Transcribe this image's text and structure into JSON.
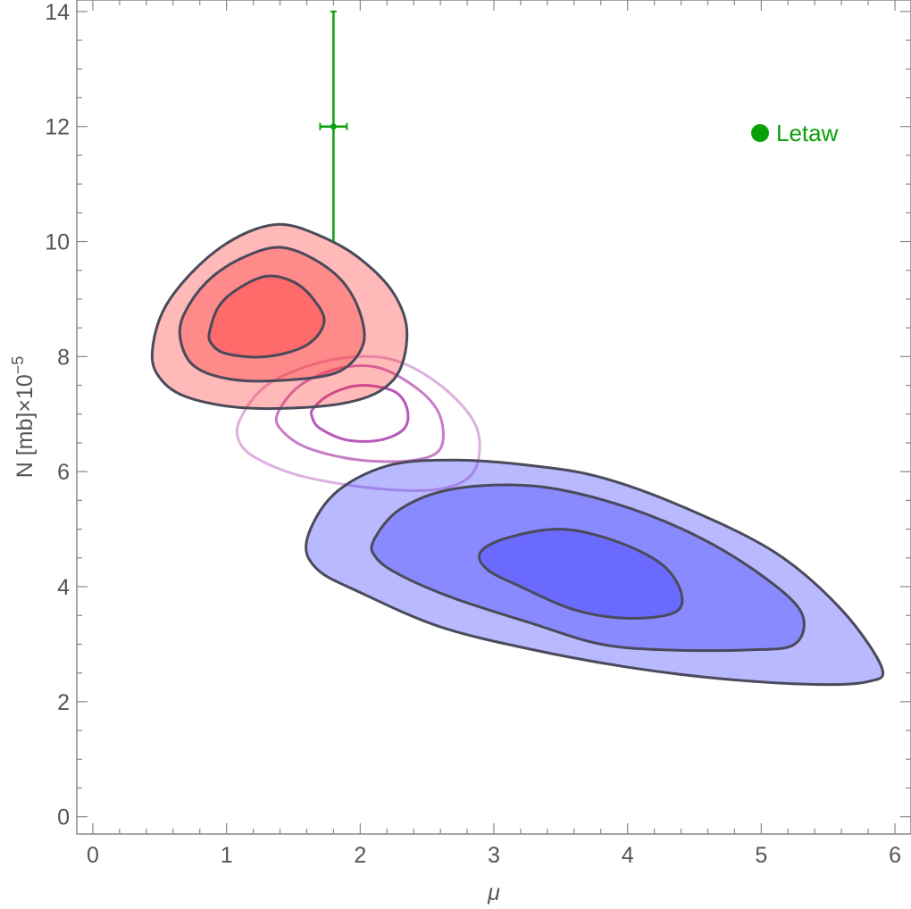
{
  "chart_data": {
    "type": "contour",
    "xlabel": "μ",
    "ylabel": "N [mb]×10",
    "ylabel_exponent": "−5",
    "xlim": [
      -0.12,
      6.12
    ],
    "ylim": [
      -0.3,
      14.2
    ],
    "x_ticks": [
      0,
      1,
      2,
      3,
      4,
      5,
      6
    ],
    "x_tick_labels": [
      "0",
      "1",
      "2",
      "3",
      "4",
      "5",
      "6"
    ],
    "y_ticks": [
      0,
      2,
      4,
      6,
      8,
      10,
      12,
      14
    ],
    "y_tick_labels": [
      "0",
      "2",
      "4",
      "6",
      "8",
      "10",
      "12",
      "14"
    ],
    "grid": false,
    "colors": {
      "red": "#ff2a2a",
      "blue": "#2a2aff",
      "purple": "#b44fb4",
      "green": "#0aa00a",
      "outline": "#4a4a5a"
    },
    "contour_sets": [
      {
        "color": "red",
        "filled": true,
        "levels": [
          {
            "points": [
              [
                0.45,
                8.2
              ],
              [
                0.55,
                8.9
              ],
              [
                0.8,
                9.6
              ],
              [
                1.1,
                10.1
              ],
              [
                1.4,
                10.3
              ],
              [
                1.7,
                10.1
              ],
              [
                2.0,
                9.7
              ],
              [
                2.25,
                9.1
              ],
              [
                2.35,
                8.4
              ],
              [
                2.25,
                7.6
              ],
              [
                1.9,
                7.2
              ],
              [
                1.2,
                7.1
              ],
              [
                0.7,
                7.3
              ],
              [
                0.48,
                7.7
              ]
            ]
          },
          {
            "points": [
              [
                0.65,
                8.4
              ],
              [
                0.72,
                8.9
              ],
              [
                0.9,
                9.4
              ],
              [
                1.15,
                9.75
              ],
              [
                1.4,
                9.9
              ],
              [
                1.65,
                9.7
              ],
              [
                1.87,
                9.3
              ],
              [
                2.0,
                8.75
              ],
              [
                2.02,
                8.2
              ],
              [
                1.85,
                7.75
              ],
              [
                1.5,
                7.6
              ],
              [
                1.05,
                7.6
              ],
              [
                0.75,
                7.85
              ]
            ]
          },
          {
            "points": [
              [
                0.88,
                8.5
              ],
              [
                0.95,
                8.9
              ],
              [
                1.1,
                9.2
              ],
              [
                1.3,
                9.4
              ],
              [
                1.5,
                9.3
              ],
              [
                1.65,
                9.0
              ],
              [
                1.73,
                8.6
              ],
              [
                1.6,
                8.2
              ],
              [
                1.3,
                8.0
              ],
              [
                1.0,
                8.05
              ],
              [
                0.88,
                8.25
              ]
            ]
          }
        ]
      },
      {
        "color": "blue",
        "filled": true,
        "levels": [
          {
            "points": [
              [
                1.6,
                4.8
              ],
              [
                1.8,
                5.6
              ],
              [
                2.2,
                6.1
              ],
              [
                2.7,
                6.2
              ],
              [
                3.3,
                6.1
              ],
              [
                3.8,
                5.9
              ],
              [
                4.4,
                5.4
              ],
              [
                5.1,
                4.6
              ],
              [
                5.6,
                3.6
              ],
              [
                5.9,
                2.6
              ],
              [
                5.8,
                2.35
              ],
              [
                5.4,
                2.3
              ],
              [
                4.7,
                2.4
              ],
              [
                4.0,
                2.6
              ],
              [
                3.3,
                2.9
              ],
              [
                2.6,
                3.3
              ],
              [
                2.0,
                3.9
              ],
              [
                1.68,
                4.3
              ]
            ]
          },
          {
            "points": [
              [
                2.1,
                4.8
              ],
              [
                2.3,
                5.35
              ],
              [
                2.7,
                5.7
              ],
              [
                3.3,
                5.75
              ],
              [
                3.9,
                5.45
              ],
              [
                4.5,
                4.9
              ],
              [
                5.0,
                4.2
              ],
              [
                5.3,
                3.55
              ],
              [
                5.25,
                3.0
              ],
              [
                4.9,
                2.9
              ],
              [
                4.3,
                2.9
              ],
              [
                3.8,
                3.0
              ],
              [
                3.3,
                3.35
              ],
              [
                2.7,
                3.8
              ],
              [
                2.3,
                4.2
              ],
              [
                2.12,
                4.5
              ]
            ]
          },
          {
            "points": [
              [
                2.9,
                4.6
              ],
              [
                3.1,
                4.85
              ],
              [
                3.5,
                5.0
              ],
              [
                3.9,
                4.8
              ],
              [
                4.25,
                4.4
              ],
              [
                4.4,
                3.9
              ],
              [
                4.35,
                3.55
              ],
              [
                4.0,
                3.45
              ],
              [
                3.6,
                3.6
              ],
              [
                3.2,
                4.0
              ],
              [
                2.95,
                4.3
              ]
            ]
          }
        ]
      },
      {
        "color": "purple",
        "filled": false,
        "levels": [
          {
            "points": [
              [
                1.1,
                6.9
              ],
              [
                1.3,
                7.5
              ],
              [
                1.7,
                7.9
              ],
              [
                2.1,
                8.0
              ],
              [
                2.4,
                7.8
              ],
              [
                2.7,
                7.3
              ],
              [
                2.88,
                6.7
              ],
              [
                2.85,
                6.0
              ],
              [
                2.6,
                5.7
              ],
              [
                2.15,
                5.7
              ],
              [
                1.6,
                5.9
              ],
              [
                1.25,
                6.2
              ],
              [
                1.1,
                6.5
              ]
            ]
          },
          {
            "points": [
              [
                1.38,
                7.0
              ],
              [
                1.55,
                7.5
              ],
              [
                1.85,
                7.8
              ],
              [
                2.15,
                7.8
              ],
              [
                2.45,
                7.4
              ],
              [
                2.6,
                6.95
              ],
              [
                2.6,
                6.4
              ],
              [
                2.4,
                6.2
              ],
              [
                2.0,
                6.2
              ],
              [
                1.62,
                6.4
              ],
              [
                1.42,
                6.7
              ]
            ]
          },
          {
            "points": [
              [
                1.65,
                7.1
              ],
              [
                1.78,
                7.35
              ],
              [
                2.0,
                7.5
              ],
              [
                2.25,
                7.4
              ],
              [
                2.35,
                7.1
              ],
              [
                2.33,
                6.75
              ],
              [
                2.15,
                6.55
              ],
              [
                1.9,
                6.55
              ],
              [
                1.7,
                6.75
              ],
              [
                1.64,
                6.95
              ]
            ]
          }
        ]
      }
    ],
    "points": [
      {
        "name": "Letaw",
        "x": 1.8,
        "y": 12,
        "x_err": [
          1.7,
          1.9
        ],
        "y_err": [
          10,
          14
        ],
        "color": "green"
      }
    ],
    "legend": {
      "position": "top-right",
      "entries": [
        {
          "label": "Letaw",
          "color": "green",
          "marker": "circle"
        }
      ]
    }
  }
}
